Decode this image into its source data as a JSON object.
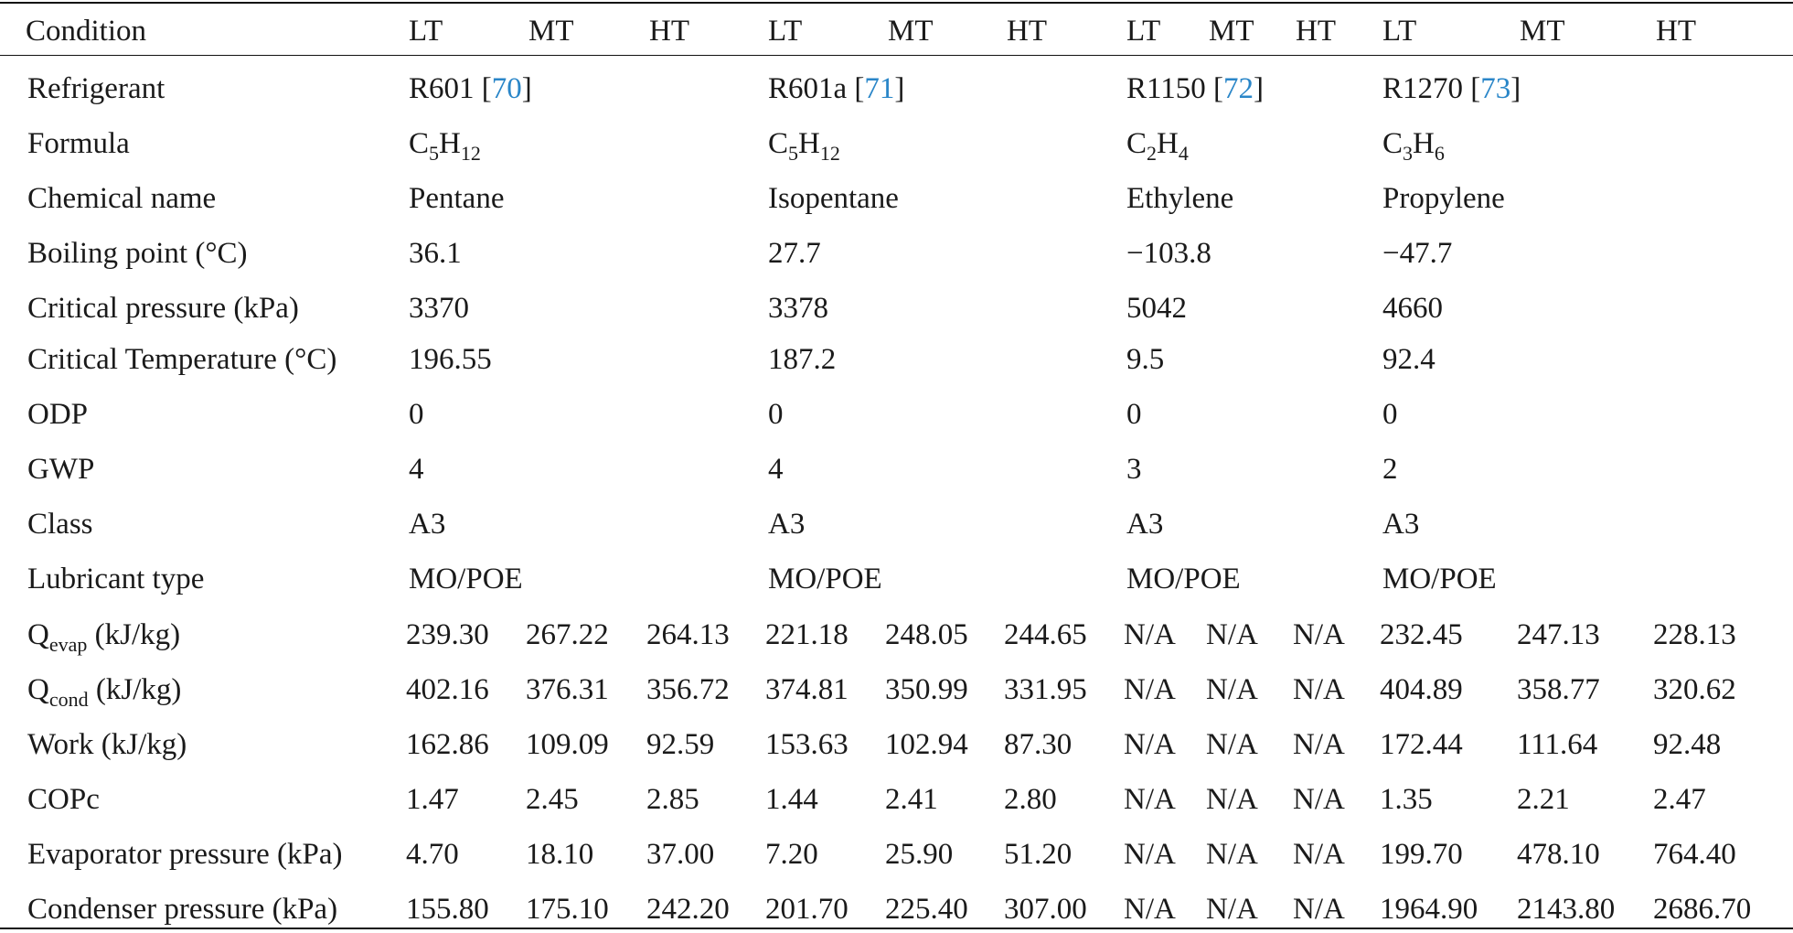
{
  "header": {
    "condition": "Condition",
    "cols": [
      "LT",
      "MT",
      "HT",
      "LT",
      "MT",
      "HT",
      "LT",
      "MT",
      "HT",
      "LT",
      "MT",
      "HT"
    ]
  },
  "refrigerants": [
    {
      "name": "R601",
      "ref": "70",
      "formula": {
        "a": "C",
        "a_sub": "5",
        "b": "H",
        "b_sub": "12"
      },
      "chemical": "Pentane",
      "boiling": "36.1",
      "crit_pressure": "3370",
      "crit_temp": "196.55",
      "odp": "0",
      "gwp": "4",
      "class": "A3",
      "lubricant": "MO/POE"
    },
    {
      "name": "R601a",
      "ref": "71",
      "formula": {
        "a": "C",
        "a_sub": "5",
        "b": "H",
        "b_sub": "12"
      },
      "chemical": "Isopentane",
      "boiling": "27.7",
      "crit_pressure": "3378",
      "crit_temp": "187.2",
      "odp": "0",
      "gwp": "4",
      "class": "A3",
      "lubricant": "MO/POE"
    },
    {
      "name": "R1150",
      "ref": "72",
      "formula": {
        "a": "C",
        "a_sub": "2",
        "b": "H",
        "b_sub": "4"
      },
      "chemical": "Ethylene",
      "boiling": "−103.8",
      "crit_pressure": "5042",
      "crit_temp": "9.5",
      "odp": "0",
      "gwp": "3",
      "class": "A3",
      "lubricant": "MO/POE"
    },
    {
      "name": "R1270",
      "ref": "73",
      "formula": {
        "a": "C",
        "a_sub": "3",
        "b": "H",
        "b_sub": "6"
      },
      "chemical": "Propylene",
      "boiling": "−47.7",
      "crit_pressure": "4660",
      "crit_temp": "92.4",
      "odp": "0",
      "gwp": "2",
      "class": "A3",
      "lubricant": "MO/POE"
    }
  ],
  "labels": {
    "refrigerant": "Refrigerant",
    "formula": "Formula",
    "chemical": "Chemical name",
    "boiling": "Boiling point (°C)",
    "crit_pressure": "Critical pressure (kPa)",
    "crit_temp": "Critical Temperature (°C)",
    "odp": "ODP",
    "gwp": "GWP",
    "class": "Class",
    "lubricant": "Lubricant type"
  },
  "perf_rows": [
    {
      "label": "Q",
      "label_sub": "evap",
      "unit": " (kJ/kg)",
      "values": [
        "239.30",
        "267.22",
        "264.13",
        "221.18",
        "248.05",
        "244.65",
        "N/A",
        "N/A",
        "N/A",
        "232.45",
        "247.13",
        "228.13"
      ]
    },
    {
      "label": "Q",
      "label_sub": "cond",
      "unit": " (kJ/kg)",
      "values": [
        "402.16",
        "376.31",
        "356.72",
        "374.81",
        "350.99",
        "331.95",
        "N/A",
        "N/A",
        "N/A",
        "404.89",
        "358.77",
        "320.62"
      ]
    },
    {
      "label": "Work (kJ/kg)",
      "label_sub": "",
      "unit": "",
      "values": [
        "162.86",
        "109.09",
        "92.59",
        "153.63",
        "102.94",
        "87.30",
        "N/A",
        "N/A",
        "N/A",
        "172.44",
        "111.64",
        "92.48"
      ]
    },
    {
      "label": "COPc",
      "label_sub": "",
      "unit": "",
      "values": [
        "1.47",
        "2.45",
        "2.85",
        "1.44",
        "2.41",
        "2.80",
        "N/A",
        "N/A",
        "N/A",
        "1.35",
        "2.21",
        "2.47"
      ]
    },
    {
      "label": "Evaporator pressure (kPa)",
      "label_sub": "",
      "unit": "",
      "values": [
        "4.70",
        "18.10",
        "37.00",
        "7.20",
        "25.90",
        "51.20",
        "N/A",
        "N/A",
        "N/A",
        "199.70",
        "478.10",
        "764.40"
      ]
    },
    {
      "label": "Condenser pressure (kPa)",
      "label_sub": "",
      "unit": "",
      "values": [
        "155.80",
        "175.10",
        "242.20",
        "201.70",
        "225.40",
        "307.00",
        "N/A",
        "N/A",
        "N/A",
        "1964.90",
        "2143.80",
        "2686.70"
      ]
    }
  ]
}
